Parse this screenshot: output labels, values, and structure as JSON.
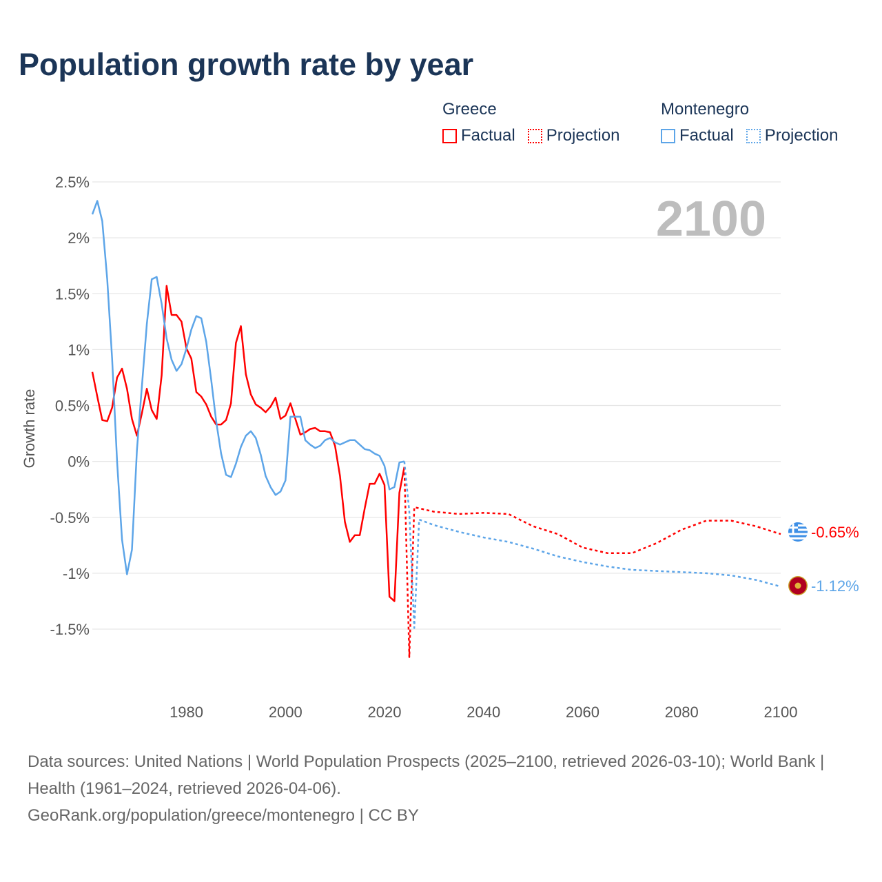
{
  "title": "Population growth rate by year",
  "legend": {
    "groups": [
      {
        "name": "Greece",
        "color": "#ff0000",
        "factual": "Factual",
        "projection": "Projection"
      },
      {
        "name": "Montenegro",
        "color": "#5da5e8",
        "factual": "Factual",
        "projection": "Projection"
      }
    ]
  },
  "year_overlay": "2100",
  "end_labels": {
    "greece": "-0.65%",
    "montenegro": "-1.12%"
  },
  "footer": {
    "sources": "Data sources: United Nations | World Population Prospects (2025–2100, retrieved 2026-03-10); World Bank | Health (1961–2024, retrieved 2026-04-06).",
    "credit": "GeoRank.org/population/greece/montenegro | CC BY"
  },
  "chart_data": {
    "type": "line",
    "title": "Population growth rate by year",
    "xlabel": "",
    "ylabel": "Growth rate",
    "xlim": [
      1961,
      2100
    ],
    "ylim": [
      -2.0,
      2.5
    ],
    "yticks": [
      2.5,
      2,
      1.5,
      1,
      0.5,
      0,
      -0.5,
      -1,
      -1.5
    ],
    "ytick_labels": [
      "2.5%",
      "2%",
      "1.5%",
      "1%",
      "0.5%",
      "0%",
      "-0.5%",
      "-1%",
      "-1.5%"
    ],
    "xticks": [
      1980,
      2000,
      2020,
      2040,
      2060,
      2080,
      2100
    ],
    "xtick_labels": [
      "1980",
      "2000",
      "2020",
      "2040",
      "2060",
      "2080",
      "2100"
    ],
    "grid": true,
    "legend_position": "top-right",
    "series": [
      {
        "name": "Greece Factual",
        "color": "#ff0000",
        "dash": false,
        "x_start": 1961,
        "values": [
          0.8,
          0.58,
          0.37,
          0.36,
          0.48,
          0.75,
          0.83,
          0.65,
          0.38,
          0.23,
          0.43,
          0.65,
          0.46,
          0.38,
          0.77,
          1.57,
          1.31,
          1.31,
          1.25,
          1.01,
          0.92,
          0.62,
          0.58,
          0.51,
          0.4,
          0.33,
          0.33,
          0.37,
          0.52,
          1.06,
          1.21,
          0.78,
          0.6,
          0.51,
          0.48,
          0.44,
          0.49,
          0.57,
          0.38,
          0.41,
          0.52,
          0.38,
          0.24,
          0.26,
          0.29,
          0.3,
          0.27,
          0.27,
          0.26,
          0.14,
          -0.13,
          -0.54,
          -0.72,
          -0.66,
          -0.66,
          -0.42,
          -0.2,
          -0.2,
          -0.11,
          -0.21,
          -1.21,
          -1.25,
          -0.28,
          -0.05
        ]
      },
      {
        "name": "Montenegro Factual",
        "color": "#5da5e8",
        "dash": false,
        "x_start": 1961,
        "values": [
          2.21,
          2.33,
          2.15,
          1.63,
          0.92,
          0.0,
          -0.7,
          -1.01,
          -0.79,
          0.1,
          0.67,
          1.23,
          1.63,
          1.65,
          1.41,
          1.1,
          0.91,
          0.81,
          0.87,
          1.01,
          1.18,
          1.3,
          1.28,
          1.07,
          0.73,
          0.36,
          0.07,
          -0.12,
          -0.14,
          -0.02,
          0.13,
          0.23,
          0.27,
          0.21,
          0.06,
          -0.13,
          -0.23,
          -0.3,
          -0.27,
          -0.17,
          0.4,
          0.4,
          0.4,
          0.19,
          0.15,
          0.12,
          0.14,
          0.19,
          0.21,
          0.17,
          0.15,
          0.17,
          0.19,
          0.19,
          0.15,
          0.11,
          0.1,
          0.07,
          0.05,
          -0.04,
          -0.25,
          -0.23,
          -0.01,
          0.0
        ]
      },
      {
        "name": "Greece Projection",
        "color": "#ff0000",
        "dash": true,
        "x": [
          2024,
          2025,
          2026,
          2030,
          2035,
          2040,
          2045,
          2050,
          2055,
          2060,
          2065,
          2070,
          2075,
          2080,
          2085,
          2090,
          2095,
          2100
        ],
        "values": [
          -0.05,
          -1.75,
          -0.41,
          -0.45,
          -0.47,
          -0.46,
          -0.47,
          -0.58,
          -0.65,
          -0.77,
          -0.82,
          -0.82,
          -0.73,
          -0.61,
          -0.53,
          -0.53,
          -0.58,
          -0.65
        ]
      },
      {
        "name": "Montenegro Projection",
        "color": "#5da5e8",
        "dash": true,
        "x": [
          2024,
          2025,
          2026,
          2027,
          2030,
          2035,
          2040,
          2045,
          2050,
          2055,
          2060,
          2065,
          2070,
          2075,
          2080,
          2085,
          2090,
          2095,
          2100
        ],
        "values": [
          0.0,
          -0.45,
          -1.49,
          -0.52,
          -0.57,
          -0.63,
          -0.68,
          -0.72,
          -0.78,
          -0.85,
          -0.9,
          -0.94,
          -0.97,
          -0.98,
          -0.99,
          -1.0,
          -1.02,
          -1.06,
          -1.12
        ]
      }
    ]
  }
}
